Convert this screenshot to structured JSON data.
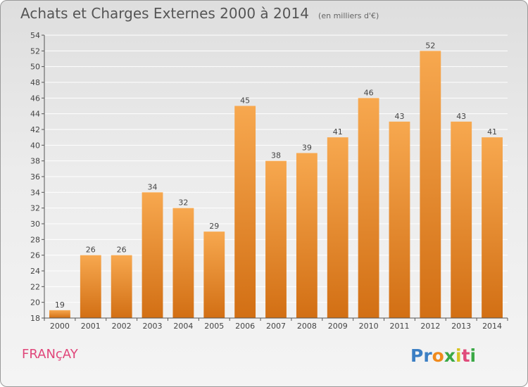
{
  "title": "Achats et Charges Externes 2000 à 2014",
  "subtitle": "(en milliers d'€)",
  "commune": "FRANçAY",
  "logo": {
    "text": "Proxiti",
    "letters": [
      {
        "ch": "P",
        "color": "#3c7fc4"
      },
      {
        "ch": "r",
        "color": "#3c7fc4"
      },
      {
        "ch": "o",
        "color": "#f08a1c"
      },
      {
        "ch": "x",
        "color": "#3aa845"
      },
      {
        "ch": "i",
        "color": "#d6c320"
      },
      {
        "ch": "t",
        "color": "#e04b7a"
      },
      {
        "ch": "i",
        "color": "#3aa845"
      }
    ]
  },
  "colors": {
    "bar_light": "#f7a84f",
    "bar_dark": "#d26f14",
    "grid": "#ffffff",
    "axis": "#555555",
    "label": "#444444"
  },
  "chart_data": {
    "type": "bar",
    "categories": [
      "2000",
      "2001",
      "2002",
      "2003",
      "2004",
      "2005",
      "2006",
      "2007",
      "2008",
      "2009",
      "2010",
      "2011",
      "2012",
      "2013",
      "2014"
    ],
    "values": [
      19,
      26,
      26,
      34,
      32,
      29,
      45,
      38,
      39,
      41,
      46,
      43,
      52,
      43,
      41
    ],
    "ylim": [
      18,
      54
    ],
    "yticks": [
      18,
      20,
      22,
      24,
      26,
      28,
      30,
      32,
      34,
      36,
      38,
      40,
      42,
      44,
      46,
      48,
      50,
      52,
      54
    ],
    "grid": true,
    "data_labels": true
  }
}
